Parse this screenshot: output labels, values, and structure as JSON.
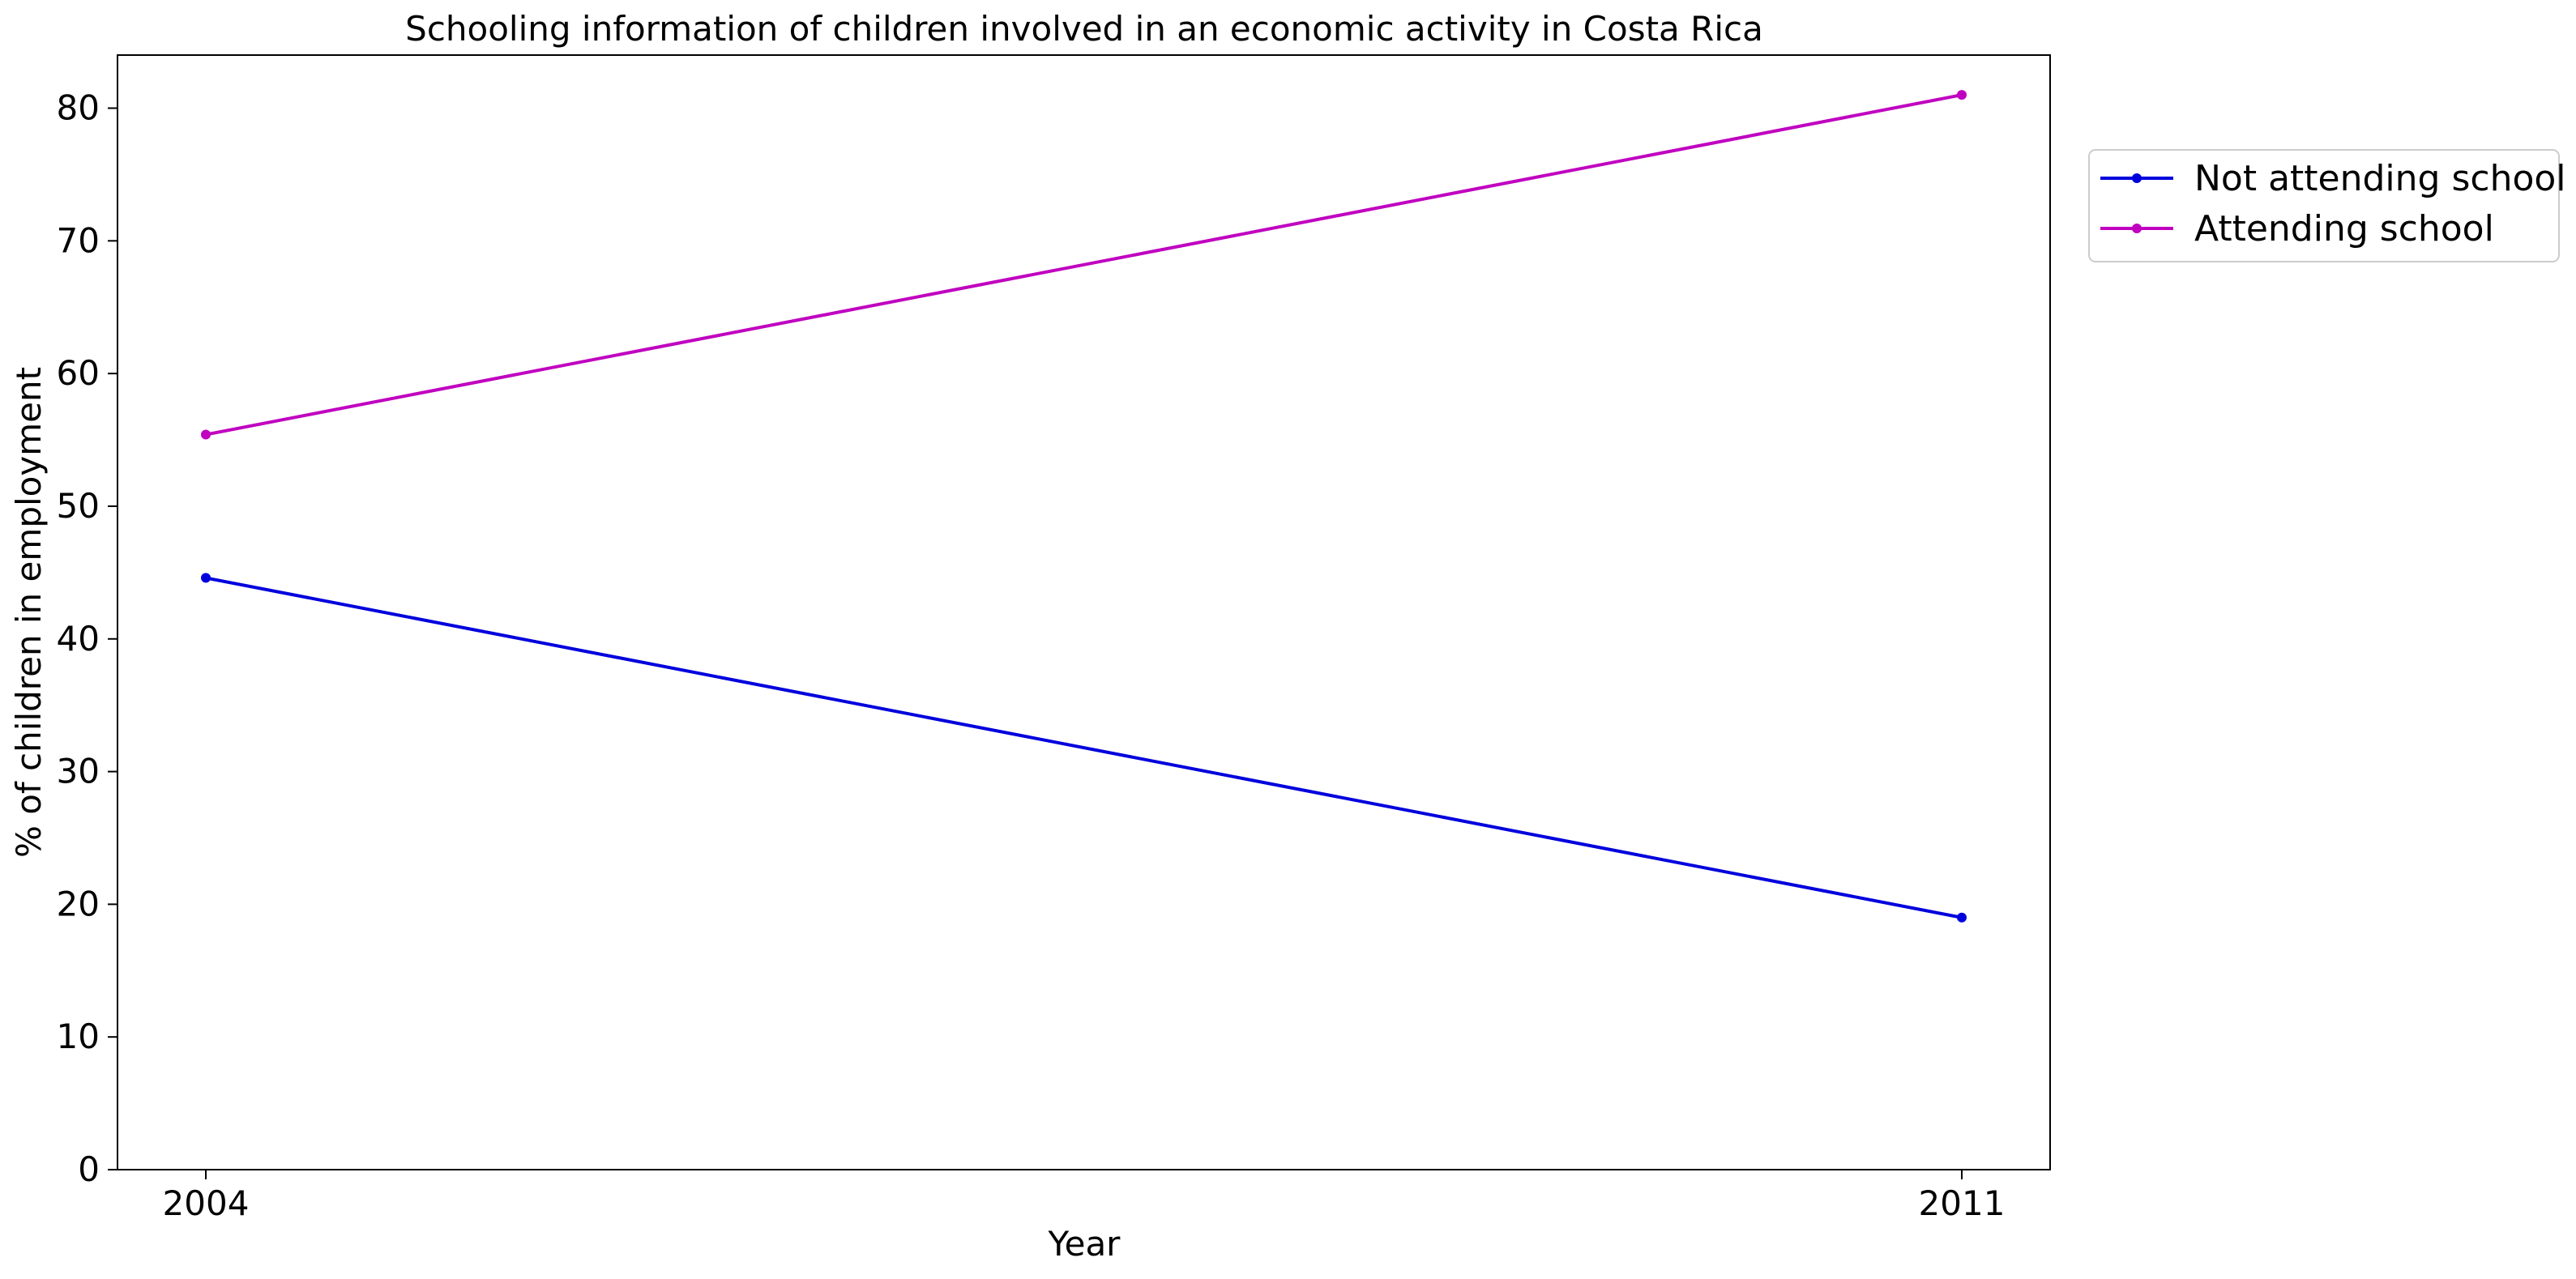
{
  "chart_data": {
    "type": "line",
    "title": "Schooling information of children involved in an economic activity in Costa Rica",
    "xlabel": "Year",
    "ylabel": "% of children in employment",
    "x": [
      "2004",
      "2011"
    ],
    "ylim": [
      0,
      84
    ],
    "yticks": [
      0,
      10,
      20,
      30,
      40,
      50,
      60,
      70,
      80
    ],
    "grid": false,
    "legend_position": "outside-top-right",
    "series": [
      {
        "name": "Not attending school",
        "color": "#0000dd",
        "values": [
          44.6,
          19.0
        ]
      },
      {
        "name": "Attending school",
        "color": "#c000c0",
        "values": [
          55.4,
          81.0
        ]
      }
    ]
  }
}
